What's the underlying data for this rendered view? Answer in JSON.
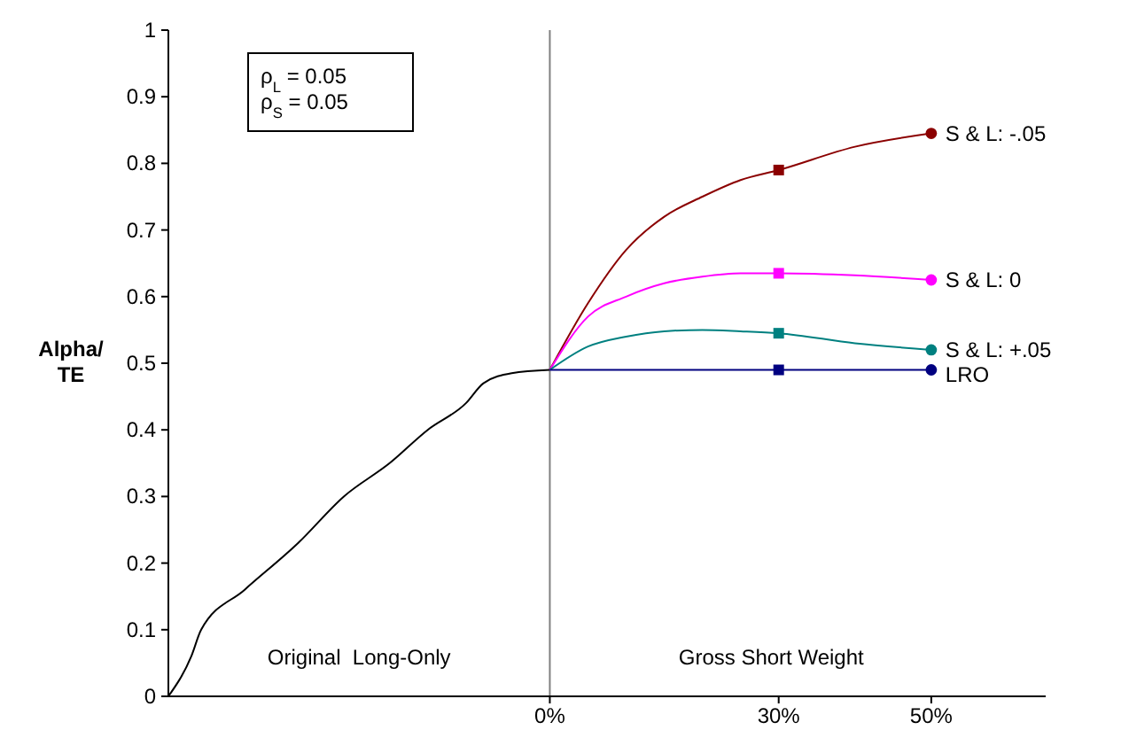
{
  "chart_data": {
    "type": "line",
    "ylabel": "Alpha/\nTE",
    "xlim": [
      -50,
      65
    ],
    "ylim": [
      0,
      1
    ],
    "xticks": [
      {
        "value": 0,
        "label": "0%"
      },
      {
        "value": 30,
        "label": "30%"
      },
      {
        "value": 50,
        "label": "50%"
      }
    ],
    "yticks": [
      0,
      0.1,
      0.2,
      0.3,
      0.4,
      0.5,
      0.6,
      0.7,
      0.8,
      0.9,
      1
    ],
    "grid": false,
    "marker": "none",
    "line_style": "solid",
    "ref_lines": [
      {
        "axis": "x",
        "value": 0,
        "color": "#808080"
      }
    ],
    "annotations": [
      "ρ$_{L}$ = 0.05\nρ$_{S}$ = 0.05",
      "Original  Long-Only",
      "Gross Short Weight"
    ],
    "series": [
      {
        "color": "#000000",
        "x": [
          -50,
          -47,
          -45.7,
          -40,
          -33,
          -27,
          -21,
          -16,
          -11,
          -8.7,
          -5,
          0
        ],
        "values": [
          0,
          0.06,
          0.1,
          0.16,
          0.23,
          0.3,
          0.35,
          0.4,
          0.44,
          0.47,
          0.485,
          0.49
        ]
      },
      {
        "name": "S & L: -.05",
        "color": "#8b0000",
        "x": [
          0,
          5,
          10,
          15,
          20,
          25,
          30,
          40,
          50
        ],
        "values": [
          0.49,
          0.59,
          0.67,
          0.72,
          0.75,
          0.775,
          0.79,
          0.825,
          0.845
        ]
      },
      {
        "name": "S & L: 0",
        "color": "#ff00ff",
        "x": [
          0,
          5,
          10,
          15,
          20,
          25,
          30,
          40,
          50
        ],
        "values": [
          0.49,
          0.57,
          0.6,
          0.62,
          0.63,
          0.635,
          0.635,
          0.632,
          0.625
        ]
      },
      {
        "name": "S & L: +.05",
        "color": "#008080",
        "x": [
          0,
          5,
          10,
          15,
          20,
          25,
          30,
          40,
          50
        ],
        "values": [
          0.49,
          0.525,
          0.54,
          0.548,
          0.55,
          0.548,
          0.545,
          0.53,
          0.52
        ]
      },
      {
        "name": "LRO",
        "color": "#000080",
        "x": [
          0,
          10,
          20,
          30,
          40,
          50
        ],
        "values": [
          0.49,
          0.49,
          0.49,
          0.49,
          0.49,
          0.49
        ]
      },
      {
        "type": "scatter",
        "marker": "square",
        "x": [
          30,
          30,
          30,
          30
        ],
        "values": [
          0.79,
          0.635,
          0.545,
          0.49
        ],
        "colors": [
          "#8b0000",
          "#ff00ff",
          "#008080",
          "#000080"
        ]
      },
      {
        "type": "scatter",
        "marker": "circle",
        "x": [
          50,
          50,
          50,
          50
        ],
        "values": [
          0.845,
          0.625,
          0.52,
          0.49
        ],
        "colors": [
          "#8b0000",
          "#ff00ff",
          "#008080",
          "#000080"
        ]
      }
    ]
  }
}
